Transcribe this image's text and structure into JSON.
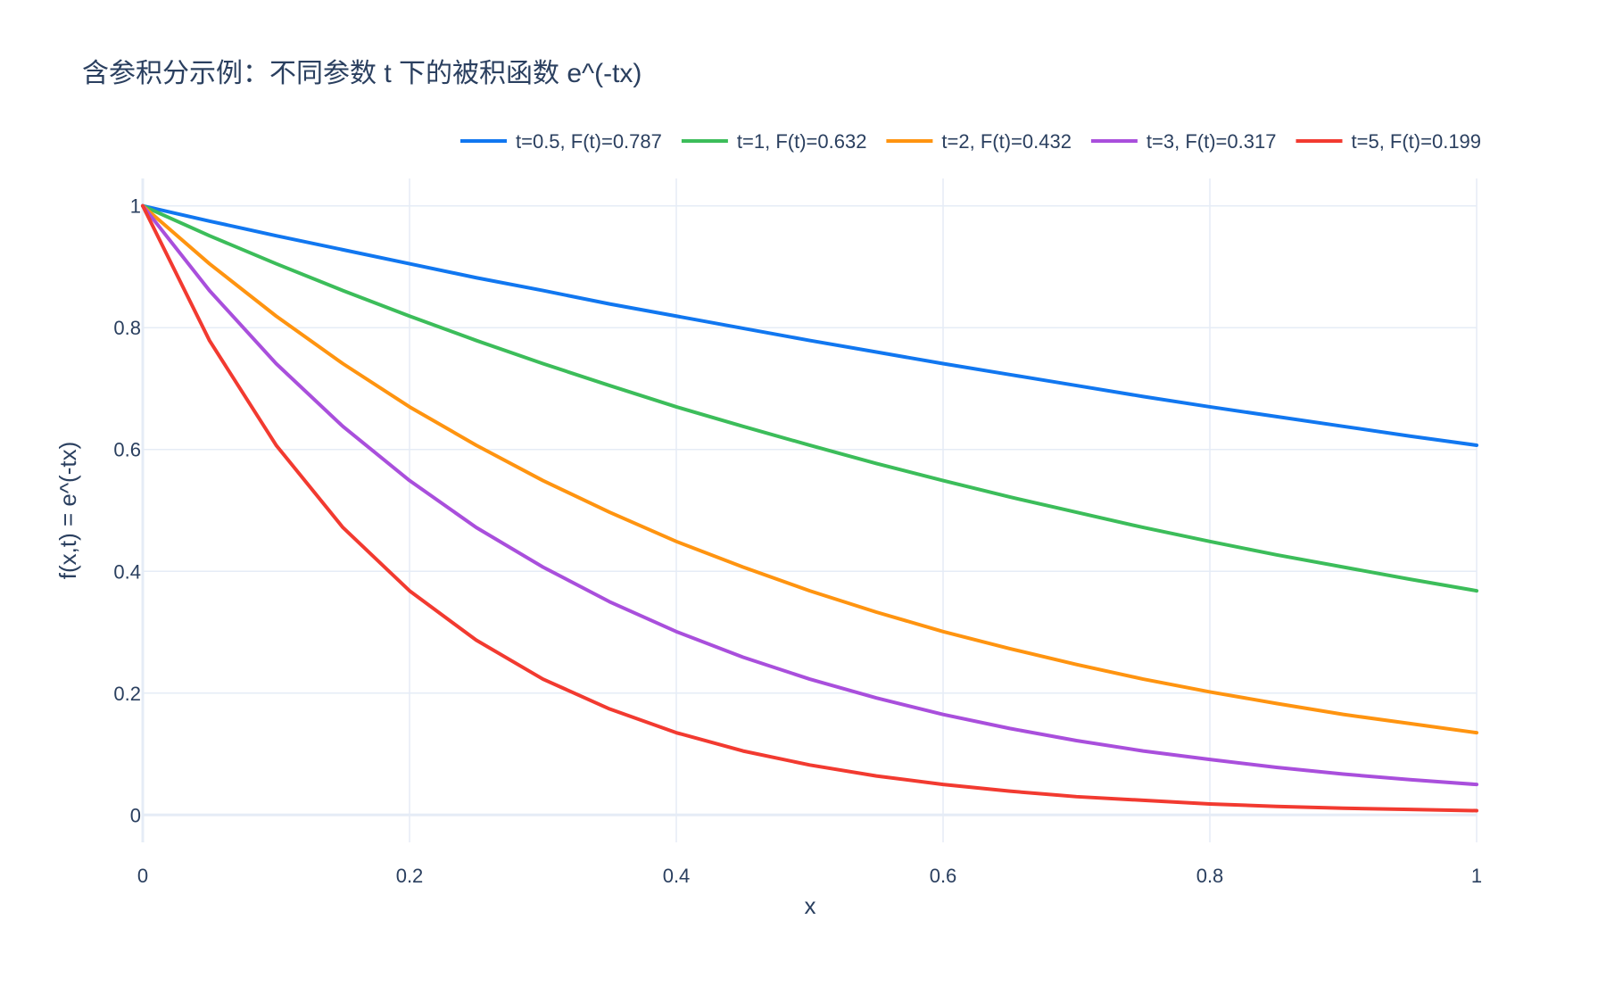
{
  "chart_data": {
    "type": "line",
    "title": "含参积分示例：不同参数 t 下的被积函数 e^(-tx)",
    "xlabel": "x",
    "ylabel": "f(x,t) = e^(-tx)",
    "xlim": [
      0,
      1
    ],
    "ylim": [
      -0.045,
      1.045
    ],
    "x_ticks": [
      0,
      0.2,
      0.4,
      0.6,
      0.8,
      1
    ],
    "x_tick_labels": [
      "0",
      "0.2",
      "0.4",
      "0.6",
      "0.8",
      "1"
    ],
    "y_ticks": [
      0,
      0.2,
      0.4,
      0.6,
      0.8,
      1
    ],
    "y_tick_labels": [
      "0",
      "0.2",
      "0.4",
      "0.6",
      "0.8",
      "1"
    ],
    "grid": true,
    "legend_position": "top-right, horizontal",
    "x": [
      0,
      0.05,
      0.1,
      0.15,
      0.2,
      0.25,
      0.3,
      0.35,
      0.4,
      0.45,
      0.5,
      0.55,
      0.6,
      0.65,
      0.7,
      0.75,
      0.8,
      0.85,
      0.9,
      0.95,
      1
    ],
    "series": [
      {
        "name": "t=0.5, F(t)=0.787",
        "color": "#1177f0",
        "values": [
          1,
          0.975,
          0.951,
          0.928,
          0.905,
          0.882,
          0.861,
          0.839,
          0.819,
          0.799,
          0.779,
          0.76,
          0.741,
          0.723,
          0.705,
          0.687,
          0.67,
          0.654,
          0.638,
          0.622,
          0.607
        ]
      },
      {
        "name": "t=1, F(t)=0.632",
        "color": "#3cbd5a",
        "values": [
          1,
          0.951,
          0.905,
          0.861,
          0.819,
          0.779,
          0.741,
          0.705,
          0.67,
          0.638,
          0.607,
          0.577,
          0.549,
          0.522,
          0.497,
          0.472,
          0.449,
          0.427,
          0.407,
          0.387,
          0.368
        ]
      },
      {
        "name": "t=2, F(t)=0.432",
        "color": "#ff9410",
        "values": [
          1,
          0.905,
          0.819,
          0.741,
          0.67,
          0.607,
          0.549,
          0.497,
          0.449,
          0.407,
          0.368,
          0.333,
          0.301,
          0.273,
          0.247,
          0.223,
          0.202,
          0.183,
          0.165,
          0.15,
          0.135
        ]
      },
      {
        "name": "t=3, F(t)=0.317",
        "color": "#a94fdc",
        "values": [
          1,
          0.861,
          0.741,
          0.638,
          0.549,
          0.472,
          0.407,
          0.35,
          0.301,
          0.259,
          0.223,
          0.192,
          0.165,
          0.142,
          0.122,
          0.105,
          0.091,
          0.078,
          0.067,
          0.058,
          0.05
        ]
      },
      {
        "name": "t=5, F(t)=0.199",
        "color": "#f23a30",
        "values": [
          1,
          0.779,
          0.607,
          0.472,
          0.368,
          0.287,
          0.223,
          0.174,
          0.135,
          0.105,
          0.082,
          0.064,
          0.05,
          0.039,
          0.03,
          0.024,
          0.018,
          0.014,
          0.011,
          0.009,
          0.007
        ]
      }
    ]
  }
}
